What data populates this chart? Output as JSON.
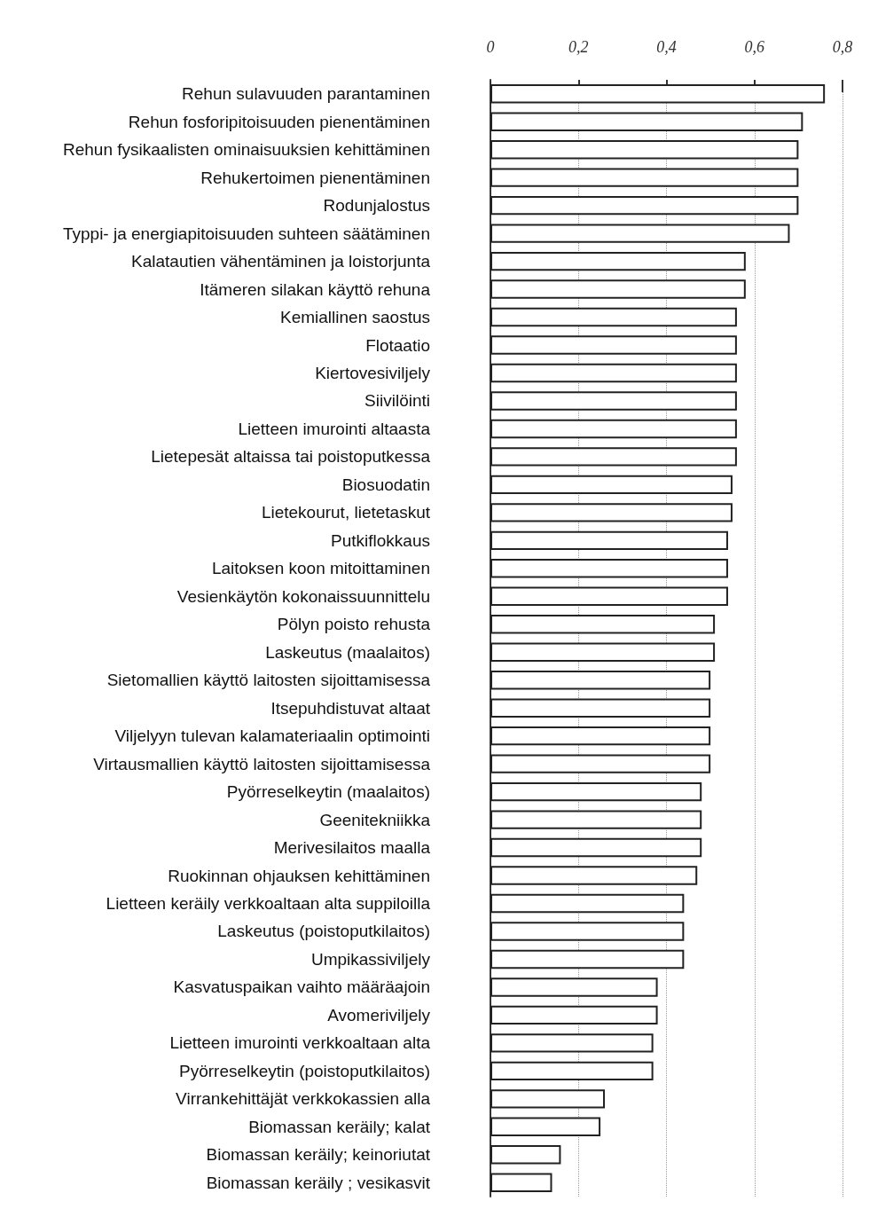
{
  "chart_data": {
    "type": "bar",
    "orientation": "horizontal",
    "color": "#ffffff",
    "categories": [
      "Rehun sulavuuden parantaminen",
      "Rehun fosforipitoisuuden pienentäminen",
      "Rehun fysikaalisten ominaisuuksien kehittäminen",
      "Rehukertoimen pienentäminen",
      "Rodunjalostus",
      "Typpi- ja energiapitoisuuden suhteen säätäminen",
      "Kalatautien vähentäminen ja loistorjunta",
      "Itämeren silakan käyttö rehuna",
      "Kemiallinen saostus",
      "Flotaatio",
      "Kiertovesiviljely",
      "Siivilöinti",
      "Lietteen imurointi altaasta",
      "Lietepesät altaissa tai poistoputkessa",
      "Biosuodatin",
      "Lietekourut, lietetaskut",
      "Putkiflokkaus",
      "Laitoksen koon mitoittaminen",
      "Vesienkäytön kokonaissuunnittelu",
      "Pölyn poisto rehusta",
      "Laskeutus (maalaitos)",
      "Sietomallien käyttö laitosten sijoittamisessa",
      "Itsepuhdistuvat altaat",
      "Viljelyyn tulevan kalamateriaalin optimointi",
      "Virtausmallien käyttö laitosten sijoittamisessa",
      "Pyörreselkeytin (maalaitos)",
      "Geenitekniikka",
      "Merivesilaitos maalla",
      "Ruokinnan ohjauksen kehittäminen",
      "Lietteen keräily verkkoaltaan alta suppiloilla",
      "Laskeutus (poistoputkilaitos)",
      "Umpikassiviljely",
      "Kasvatuspaikan vaihto määräajoin",
      "Avomeriviljely",
      "Lietteen imurointi verkkoaltaan alta",
      "Pyörreselkeytin (poistoputkilaitos)",
      "Virrankehittäjät verkkokassien alla",
      "Biomassan keräily; kalat",
      "Biomassan keräily; keinoriutat",
      "Biomassan keräily ; vesikasvit"
    ],
    "values": [
      0.76,
      0.71,
      0.7,
      0.7,
      0.7,
      0.68,
      0.58,
      0.58,
      0.56,
      0.56,
      0.56,
      0.56,
      0.56,
      0.56,
      0.55,
      0.55,
      0.54,
      0.54,
      0.54,
      0.51,
      0.51,
      0.5,
      0.5,
      0.5,
      0.5,
      0.48,
      0.48,
      0.48,
      0.47,
      0.44,
      0.44,
      0.44,
      0.38,
      0.38,
      0.37,
      0.37,
      0.26,
      0.25,
      0.16,
      0.14
    ],
    "xlim": [
      0,
      0.8
    ],
    "xticks": [
      {
        "value": 0,
        "label": "0"
      },
      {
        "value": 0.2,
        "label": "0,2"
      },
      {
        "value": 0.4,
        "label": "0,4"
      },
      {
        "value": 0.6,
        "label": "0,6"
      },
      {
        "value": 0.8,
        "label": "0,8"
      }
    ],
    "grid": "x"
  }
}
